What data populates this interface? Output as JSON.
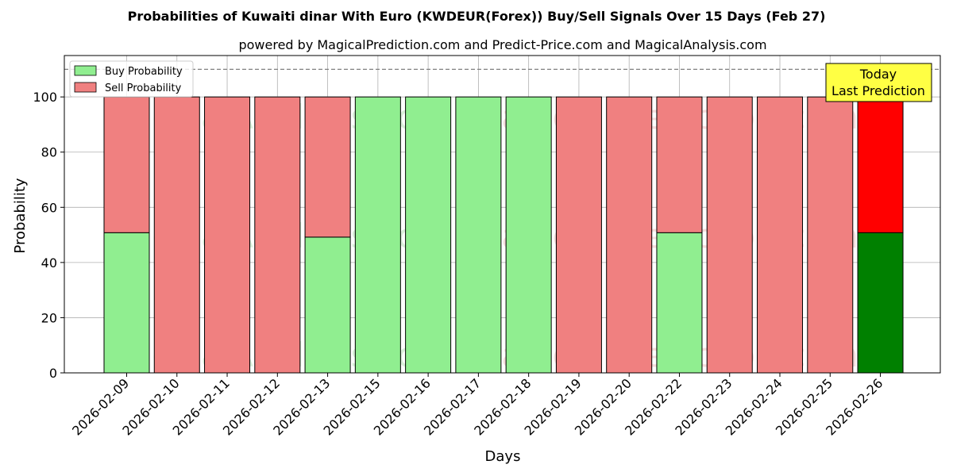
{
  "chart_data": {
    "type": "bar",
    "stacked": true,
    "title": "Probabilities of Kuwaiti dinar With Euro (KWDEUR(Forex)) Buy/Sell Signals Over 15 Days (Feb 27)",
    "subtitle": "powered by MagicalPrediction.com and Predict-Price.com and MagicalAnalysis.com",
    "xlabel": "Days",
    "ylabel": "Probability",
    "ylim": [
      0,
      115
    ],
    "yticks": [
      0,
      20,
      40,
      60,
      80,
      100
    ],
    "grid": true,
    "legend_position": "top-left",
    "reference_line": 110,
    "categories": [
      "2026-02-09",
      "2026-02-10",
      "2026-02-11",
      "2026-02-12",
      "2026-02-13",
      "2026-02-15",
      "2026-02-16",
      "2026-02-17",
      "2026-02-18",
      "2026-02-19",
      "2026-02-20",
      "2026-02-22",
      "2026-02-23",
      "2026-02-24",
      "2026-02-25",
      "2026-02-26"
    ],
    "series": [
      {
        "name": "Buy Probability",
        "color": "#90ee90",
        "highlight_color": "#008000",
        "values": [
          50.8,
          0,
          0,
          0,
          49.2,
          100,
          100,
          100,
          100,
          0,
          0,
          50.8,
          0,
          0,
          0,
          50.8
        ]
      },
      {
        "name": "Sell Probability",
        "color": "#f08080",
        "highlight_color": "#ff0000",
        "values": [
          49.2,
          100,
          100,
          100,
          50.8,
          0,
          0,
          0,
          0,
          100,
          100,
          49.2,
          100,
          100,
          100,
          49.2
        ]
      }
    ],
    "highlight_index": 15,
    "annotation": {
      "line1": "Today",
      "line2": "Last Prediction",
      "bg": "#ffff44"
    },
    "watermarks": [
      "MagicalAnalysis.com",
      "Magical Prediction.com"
    ]
  }
}
